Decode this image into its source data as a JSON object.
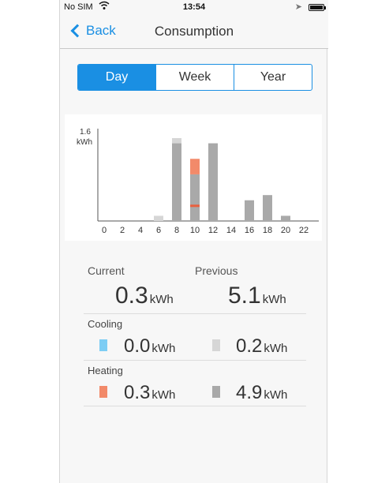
{
  "statusbar": {
    "carrier": "No SIM",
    "time": "13:54"
  },
  "navbar": {
    "back_label": "Back",
    "title": "Consumption"
  },
  "tabs": [
    {
      "label": "Day",
      "active": true
    },
    {
      "label": "Week",
      "active": false
    },
    {
      "label": "Year",
      "active": false
    }
  ],
  "chart_data": {
    "type": "bar",
    "ytick_value": "1.6",
    "ytick_unit": "kWh",
    "ymax": 1.6,
    "x_labels": [
      "0",
      "2",
      "4",
      "6",
      "8",
      "10",
      "12",
      "14",
      "16",
      "18",
      "20",
      "22"
    ],
    "hours": [
      6,
      8,
      10,
      12,
      16,
      18,
      20
    ],
    "series": [
      {
        "color": "#a9a9a9",
        "values": [
          0.0,
          1.5,
          0.9,
          1.5,
          0.4,
          0.5,
          0.1
        ]
      },
      {
        "color": "#d6d6d6",
        "values": [
          0.1,
          0.1,
          0.0,
          0.0,
          0.0,
          0.0,
          0.0
        ]
      },
      {
        "color": "#f28a6a",
        "values": [
          0.0,
          0.0,
          0.3,
          0.0,
          0.0,
          0.0,
          0.0
        ]
      }
    ],
    "highlight_hour": 10,
    "highlight_color": "#e8603f"
  },
  "stats": {
    "current_label": "Current",
    "previous_label": "Previous",
    "current_value": "0.3",
    "previous_value": "5.1",
    "unit": "kWh",
    "cooling": {
      "label": "Cooling",
      "current_value": "0.0",
      "previous_value": "0.2",
      "current_color": "#7dcdf4",
      "previous_color": "#d6d6d6"
    },
    "heating": {
      "label": "Heating",
      "current_value": "0.3",
      "previous_value": "4.9",
      "current_color": "#f28a6a",
      "previous_color": "#a9a9a9"
    }
  }
}
